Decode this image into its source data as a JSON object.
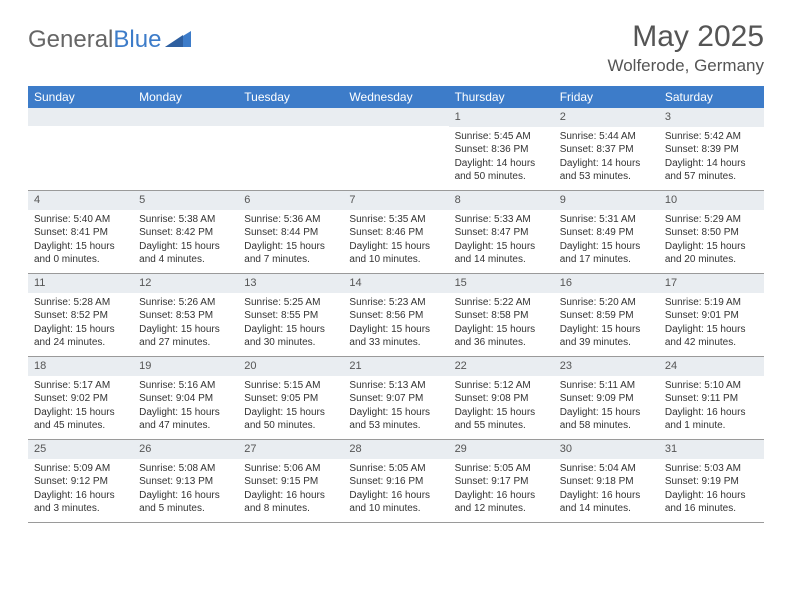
{
  "logo": {
    "text_gray": "General",
    "text_blue": "Blue"
  },
  "title": "May 2025",
  "location": "Wolferode, Germany",
  "colors": {
    "header_bg": "#3d7cc9",
    "daynum_bg": "#e9edf1",
    "border": "#9a9a9a",
    "text": "#333333",
    "title_text": "#555555"
  },
  "weekdays": [
    "Sunday",
    "Monday",
    "Tuesday",
    "Wednesday",
    "Thursday",
    "Friday",
    "Saturday"
  ],
  "weeks": [
    [
      null,
      null,
      null,
      null,
      {
        "n": "1",
        "sunrise": "5:45 AM",
        "sunset": "8:36 PM",
        "daylight": "14 hours and 50 minutes."
      },
      {
        "n": "2",
        "sunrise": "5:44 AM",
        "sunset": "8:37 PM",
        "daylight": "14 hours and 53 minutes."
      },
      {
        "n": "3",
        "sunrise": "5:42 AM",
        "sunset": "8:39 PM",
        "daylight": "14 hours and 57 minutes."
      }
    ],
    [
      {
        "n": "4",
        "sunrise": "5:40 AM",
        "sunset": "8:41 PM",
        "daylight": "15 hours and 0 minutes."
      },
      {
        "n": "5",
        "sunrise": "5:38 AM",
        "sunset": "8:42 PM",
        "daylight": "15 hours and 4 minutes."
      },
      {
        "n": "6",
        "sunrise": "5:36 AM",
        "sunset": "8:44 PM",
        "daylight": "15 hours and 7 minutes."
      },
      {
        "n": "7",
        "sunrise": "5:35 AM",
        "sunset": "8:46 PM",
        "daylight": "15 hours and 10 minutes."
      },
      {
        "n": "8",
        "sunrise": "5:33 AM",
        "sunset": "8:47 PM",
        "daylight": "15 hours and 14 minutes."
      },
      {
        "n": "9",
        "sunrise": "5:31 AM",
        "sunset": "8:49 PM",
        "daylight": "15 hours and 17 minutes."
      },
      {
        "n": "10",
        "sunrise": "5:29 AM",
        "sunset": "8:50 PM",
        "daylight": "15 hours and 20 minutes."
      }
    ],
    [
      {
        "n": "11",
        "sunrise": "5:28 AM",
        "sunset": "8:52 PM",
        "daylight": "15 hours and 24 minutes."
      },
      {
        "n": "12",
        "sunrise": "5:26 AM",
        "sunset": "8:53 PM",
        "daylight": "15 hours and 27 minutes."
      },
      {
        "n": "13",
        "sunrise": "5:25 AM",
        "sunset": "8:55 PM",
        "daylight": "15 hours and 30 minutes."
      },
      {
        "n": "14",
        "sunrise": "5:23 AM",
        "sunset": "8:56 PM",
        "daylight": "15 hours and 33 minutes."
      },
      {
        "n": "15",
        "sunrise": "5:22 AM",
        "sunset": "8:58 PM",
        "daylight": "15 hours and 36 minutes."
      },
      {
        "n": "16",
        "sunrise": "5:20 AM",
        "sunset": "8:59 PM",
        "daylight": "15 hours and 39 minutes."
      },
      {
        "n": "17",
        "sunrise": "5:19 AM",
        "sunset": "9:01 PM",
        "daylight": "15 hours and 42 minutes."
      }
    ],
    [
      {
        "n": "18",
        "sunrise": "5:17 AM",
        "sunset": "9:02 PM",
        "daylight": "15 hours and 45 minutes."
      },
      {
        "n": "19",
        "sunrise": "5:16 AM",
        "sunset": "9:04 PM",
        "daylight": "15 hours and 47 minutes."
      },
      {
        "n": "20",
        "sunrise": "5:15 AM",
        "sunset": "9:05 PM",
        "daylight": "15 hours and 50 minutes."
      },
      {
        "n": "21",
        "sunrise": "5:13 AM",
        "sunset": "9:07 PM",
        "daylight": "15 hours and 53 minutes."
      },
      {
        "n": "22",
        "sunrise": "5:12 AM",
        "sunset": "9:08 PM",
        "daylight": "15 hours and 55 minutes."
      },
      {
        "n": "23",
        "sunrise": "5:11 AM",
        "sunset": "9:09 PM",
        "daylight": "15 hours and 58 minutes."
      },
      {
        "n": "24",
        "sunrise": "5:10 AM",
        "sunset": "9:11 PM",
        "daylight": "16 hours and 1 minute."
      }
    ],
    [
      {
        "n": "25",
        "sunrise": "5:09 AM",
        "sunset": "9:12 PM",
        "daylight": "16 hours and 3 minutes."
      },
      {
        "n": "26",
        "sunrise": "5:08 AM",
        "sunset": "9:13 PM",
        "daylight": "16 hours and 5 minutes."
      },
      {
        "n": "27",
        "sunrise": "5:06 AM",
        "sunset": "9:15 PM",
        "daylight": "16 hours and 8 minutes."
      },
      {
        "n": "28",
        "sunrise": "5:05 AM",
        "sunset": "9:16 PM",
        "daylight": "16 hours and 10 minutes."
      },
      {
        "n": "29",
        "sunrise": "5:05 AM",
        "sunset": "9:17 PM",
        "daylight": "16 hours and 12 minutes."
      },
      {
        "n": "30",
        "sunrise": "5:04 AM",
        "sunset": "9:18 PM",
        "daylight": "16 hours and 14 minutes."
      },
      {
        "n": "31",
        "sunrise": "5:03 AM",
        "sunset": "9:19 PM",
        "daylight": "16 hours and 16 minutes."
      }
    ]
  ],
  "labels": {
    "sunrise": "Sunrise: ",
    "sunset": "Sunset: ",
    "daylight": "Daylight: "
  }
}
